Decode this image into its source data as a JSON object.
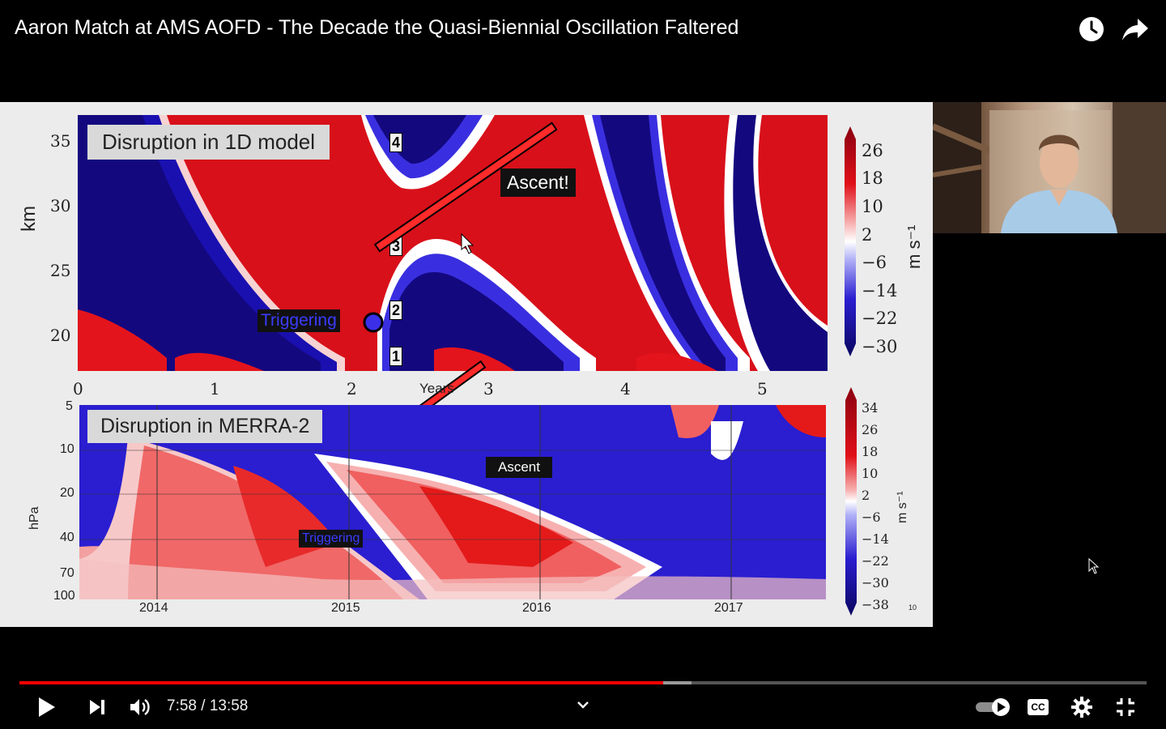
{
  "video": {
    "title": "Aaron Match at AMS AOFD - The Decade the Quasi-Biennial Oscillation Faltered",
    "current_time": "7:58",
    "duration": "13:58",
    "time_display": "7:58 / 13:58",
    "progress_fraction": 0.571,
    "buffered_fraction": 0.596
  },
  "top_icons": [
    "watch-later-icon",
    "share-icon"
  ],
  "slide": {
    "top_panel": {
      "label": "Disruption in 1D model",
      "ylabel": "km",
      "xlabel": "Years",
      "yticks": [
        "35",
        "30",
        "25",
        "20"
      ],
      "xticks": [
        "0",
        "1",
        "2",
        "3",
        "4",
        "5"
      ],
      "ascent_label": "Ascent!",
      "triggering_label": "Triggering",
      "markers": [
        "1",
        "2",
        "3",
        "4"
      ],
      "colorbar_ticks": [
        "26",
        "18",
        "10",
        "2",
        "−6",
        "−14",
        "−22",
        "−30"
      ],
      "colorbar_unit": "m s⁻¹"
    },
    "bottom_panel": {
      "label": "Disruption in MERRA-2",
      "ylabel": "hPa",
      "yticks": [
        "5",
        "10",
        "20",
        "40",
        "70",
        "100"
      ],
      "xticks": [
        "2014",
        "2015",
        "2016",
        "2017"
      ],
      "ascent_label": "Ascent",
      "triggering_label": "Triggering",
      "colorbar_ticks": [
        "34",
        "26",
        "18",
        "10",
        "2",
        "−6",
        "−14",
        "−22",
        "−30",
        "−38"
      ],
      "colorbar_unit": "m s⁻¹",
      "corner_mark": "10"
    }
  },
  "controls": {
    "play_icon": "play-icon",
    "next_icon": "next-icon",
    "volume_icon": "volume-icon",
    "chevron_icon": "chevron-down-icon",
    "autoplay_icon": "autoplay-toggle-icon",
    "captions_label": "CC",
    "settings_icon": "gear-icon",
    "exit_fullscreen_icon": "exit-fullscreen-icon"
  },
  "colors": {
    "progress_played": "#ff0000",
    "wind_positive": "#e8141b",
    "wind_negative": "#1a0fb8",
    "wind_neutral": "#ffffff"
  }
}
